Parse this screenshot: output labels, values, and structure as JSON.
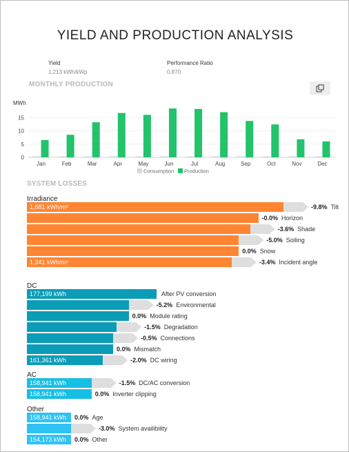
{
  "header": {
    "title": "YIELD AND PRODUCTION ANALYSIS"
  },
  "metrics": {
    "yield_label": "Yield",
    "yield_value": "1,213 kWh/kWp",
    "pr_label": "Performance Ratio",
    "pr_value": "0.870"
  },
  "monthly_section_title": "MONTHLY PRODUCTION",
  "losses_section_title": "SYSTEM LOSSES",
  "copy_button": {
    "icon": "copy-icon"
  },
  "colors": {
    "production": "#22c36b",
    "consumption": "#d9d9d9",
    "irradiance": "#ff8533",
    "dc": "#0b9cb8",
    "ac": "#16bfe4",
    "other": "#2ec2f5",
    "loss": "#dedede"
  },
  "chart_data": {
    "type": "bar",
    "categories": [
      "Jan",
      "Feb",
      "Mar",
      "Apr",
      "May",
      "Jun",
      "Jul",
      "Aug",
      "Sep",
      "Oct",
      "Nov",
      "Dec"
    ],
    "series": [
      {
        "name": "Consumption",
        "values": [
          0.4,
          0.4,
          0.4,
          0.4,
          0.4,
          0.4,
          0.4,
          0.4,
          0.4,
          0.4,
          0.4,
          0.4
        ]
      },
      {
        "name": "Production",
        "values": [
          6.5,
          8.5,
          13.2,
          16.7,
          16.0,
          18.4,
          18.2,
          17.0,
          13.7,
          12.4,
          6.8,
          6.0
        ]
      }
    ],
    "ylabel": "MWh",
    "yticks": [
      0,
      5,
      10,
      15
    ],
    "ylim": [
      0,
      20
    ],
    "legend": "bottom-center"
  },
  "loss_groups": [
    {
      "label": "Irradiance",
      "color": "#ff8533",
      "rows": [
        {
          "type": "bar",
          "value": 1.0,
          "label": "1,681 kWh/m²",
          "name": "Irradiance"
        },
        {
          "type": "loss",
          "start": 0.0,
          "end": 0.902,
          "pct": "-9.8%",
          "name": "Tilt"
        },
        {
          "type": "bar",
          "value": 0.902,
          "label": ""
        },
        {
          "type": "loss",
          "start": 0.0,
          "end": 0.902,
          "pct": "-0.0%",
          "name": "Horizon"
        },
        {
          "type": "bar",
          "value": 0.87,
          "label": ""
        },
        {
          "type": "loss",
          "start": 0.0,
          "end": 0.87,
          "pct": "-3.6%",
          "name": "Shade"
        },
        {
          "type": "bar",
          "value": 0.826,
          "label": ""
        },
        {
          "type": "loss",
          "start": 0.0,
          "end": 0.826,
          "pct": "-5.0%",
          "name": "Soiling"
        },
        {
          "type": "bar",
          "value": 0.826,
          "label": ""
        },
        {
          "type": "loss",
          "start": 0.0,
          "end": 0.826,
          "pct": "0.0%",
          "name": "Snow"
        },
        {
          "type": "bar",
          "value": 0.798,
          "label": "1,341 kWh/m²"
        },
        {
          "type": "loss",
          "start": 0.0,
          "end": 0.798,
          "pct": "-3.4%",
          "name": "Incident angle"
        }
      ]
    },
    {
      "label": "DC",
      "color": "#0b9cb8",
      "rows": [
        {
          "type": "bar",
          "value": 0.505,
          "label": "177,199 kWh",
          "name": "After PV conversion"
        },
        {
          "type": "bar",
          "value": 0.397,
          "label": ""
        },
        {
          "type": "loss",
          "start": 0.0,
          "end": 0.397,
          "pct": "-5.2%",
          "name": "Environmental"
        },
        {
          "type": "bar",
          "value": 0.397,
          "label": ""
        },
        {
          "type": "loss",
          "start": 0.0,
          "end": 0.397,
          "pct": "0.0%",
          "name": "Module rating"
        },
        {
          "type": "bar",
          "value": 0.35,
          "label": ""
        },
        {
          "type": "loss",
          "start": 0.0,
          "end": 0.35,
          "pct": "-1.5%",
          "name": "Degradation"
        },
        {
          "type": "bar",
          "value": 0.336,
          "label": ""
        },
        {
          "type": "loss",
          "start": 0.0,
          "end": 0.336,
          "pct": "-0.5%",
          "name": "Connections"
        },
        {
          "type": "bar",
          "value": 0.336,
          "label": ""
        },
        {
          "type": "loss",
          "start": 0.0,
          "end": 0.336,
          "pct": "0.0%",
          "name": "Mismatch"
        },
        {
          "type": "bar",
          "value": 0.296,
          "label": "161,361 kWh"
        },
        {
          "type": "loss",
          "start": 0.0,
          "end": 0.296,
          "pct": "-2.0%",
          "name": "DC wiring"
        }
      ]
    },
    {
      "label": "AC",
      "color": "#16bfe4",
      "rows": [
        {
          "type": "bar",
          "value": 0.252,
          "label": "158,941 kWh"
        },
        {
          "type": "loss",
          "start": 0.0,
          "end": 0.252,
          "pct": "-1.5%",
          "name": "DC/AC conversion"
        },
        {
          "type": "bar",
          "value": 0.252,
          "label": "158,941 kWh"
        },
        {
          "type": "loss",
          "start": 0.0,
          "end": 0.252,
          "pct": "0.0%",
          "name": "Inverter clipping"
        }
      ]
    },
    {
      "label": "Other",
      "color": "#2ec2f5",
      "rows": [
        {
          "type": "bar",
          "value": 0.172,
          "label": "158,941 kWh"
        },
        {
          "type": "loss",
          "start": 0.0,
          "end": 0.172,
          "pct": "0.0%",
          "name": "Age"
        },
        {
          "type": "bar",
          "value": 0.172,
          "label": ""
        },
        {
          "type": "loss",
          "start": 0.0,
          "end": 0.172,
          "pct": "-3.0%",
          "name": "System availibility"
        },
        {
          "type": "bar",
          "value": 0.172,
          "label": "154,173 kWh"
        },
        {
          "type": "loss",
          "start": 0.0,
          "end": 0.172,
          "pct": "0.0%",
          "name": "Other"
        }
      ]
    }
  ]
}
